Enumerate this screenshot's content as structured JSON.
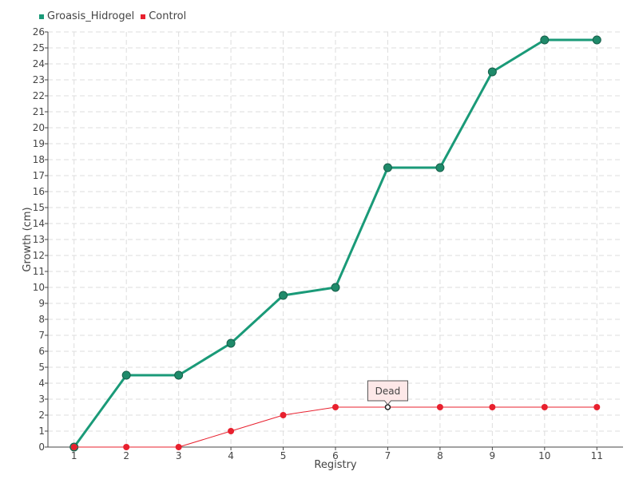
{
  "chart_data": {
    "type": "line",
    "x": [
      1,
      2,
      3,
      4,
      5,
      6,
      7,
      8,
      9,
      10,
      11
    ],
    "xlabel": "Registry",
    "ylabel": "Growth (cm)",
    "ylim": [
      0,
      26
    ],
    "yticks": [
      0,
      1,
      2,
      3,
      4,
      5,
      6,
      7,
      8,
      9,
      10,
      11,
      12,
      13,
      14,
      15,
      16,
      17,
      18,
      19,
      20,
      21,
      22,
      23,
      24,
      25,
      26
    ],
    "grid": true,
    "legend_position": "top-left",
    "series": [
      {
        "name": "Groasis_Hidrogel",
        "color": "#1a9a78",
        "values": [
          0,
          4.5,
          4.5,
          6.5,
          9.5,
          10,
          17.5,
          17.5,
          23.5,
          25.5,
          25.5
        ]
      },
      {
        "name": "Control",
        "color": "#e8202e",
        "values": [
          0,
          0,
          0,
          1,
          2,
          2.5,
          2.5,
          2.5,
          2.5,
          2.5,
          2.5
        ]
      }
    ],
    "annotations": [
      {
        "text": "Dead",
        "series": "Control",
        "x": 7,
        "y": 2.5
      }
    ]
  }
}
